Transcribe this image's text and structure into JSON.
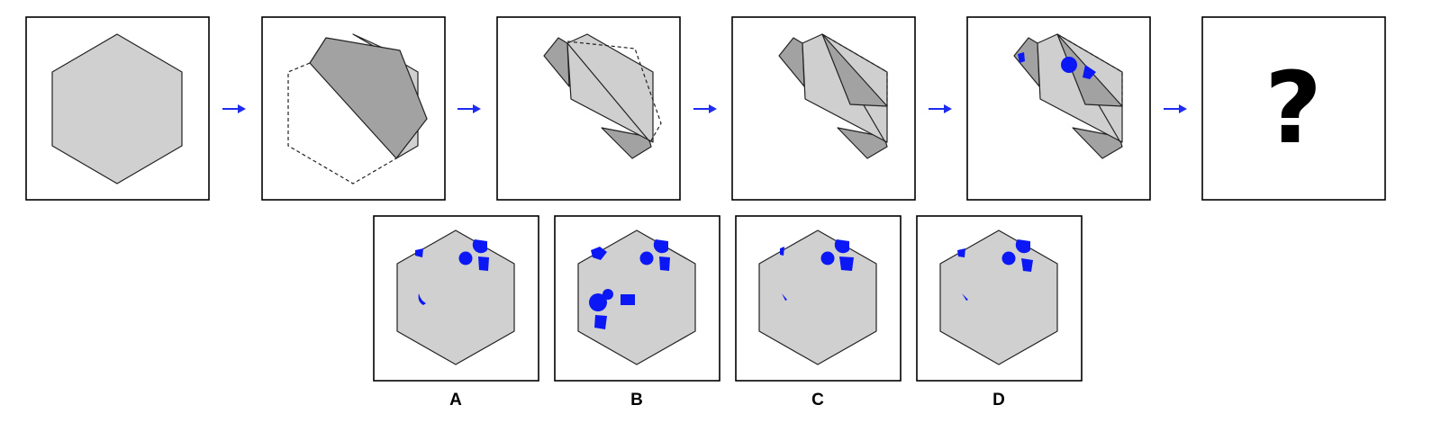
{
  "sequence": {
    "arrow_color": "#1d2cf0",
    "question_mark": "?"
  },
  "options": [
    {
      "label": "A"
    },
    {
      "label": "B"
    },
    {
      "label": "C"
    },
    {
      "label": "D"
    }
  ],
  "colors": {
    "paper": "#d0d0d0",
    "folded_flap": "#a2a2a2",
    "punch_marks": "#0b18f5"
  }
}
